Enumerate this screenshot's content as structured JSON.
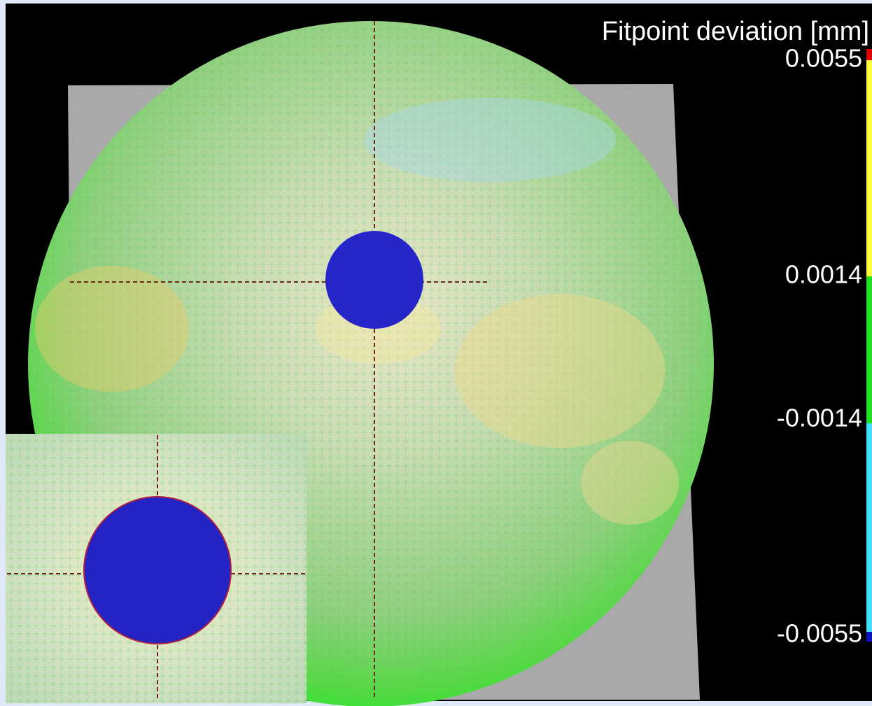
{
  "colorbar": {
    "title": "Fitpoint deviation [mm]",
    "ticks": [
      "0.0055",
      "0.0014",
      "-0.0014",
      "-0.0055"
    ]
  }
}
